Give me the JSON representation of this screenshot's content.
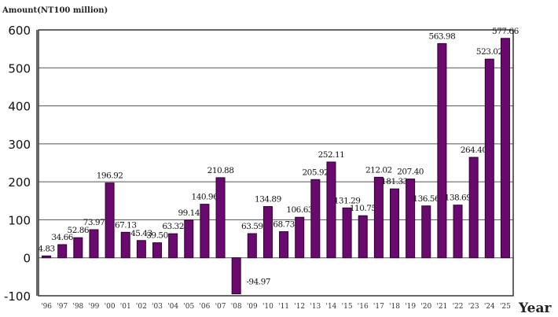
{
  "chart_data": {
    "type": "bar",
    "ylabel": "Amount(NT100 million)",
    "xlabel": "Year",
    "ylim": [
      -100,
      600
    ],
    "yticks": [
      -100,
      0,
      100,
      200,
      300,
      400,
      500,
      600
    ],
    "grid": true,
    "bar_color": "#6b0a6e",
    "categories": [
      "'96",
      "'97",
      "'98",
      "'99",
      "'00",
      "'01",
      "'02",
      "'03",
      "'04",
      "'05",
      "'06",
      "'07",
      "'08",
      "'09",
      "'10",
      "'11",
      "'12",
      "'13",
      "'14",
      "'15",
      "'16",
      "'17",
      "'18",
      "'19",
      "'20",
      "'21",
      "'22",
      "'23",
      "'24",
      "'25"
    ],
    "values": [
      4.83,
      34.66,
      52.86,
      73.97,
      196.92,
      67.13,
      45.43,
      39.5,
      63.32,
      99.14,
      140.96,
      210.88,
      -94.97,
      63.59,
      134.89,
      68.73,
      106.63,
      205.92,
      252.11,
      131.29,
      110.75,
      212.02,
      181.33,
      207.4,
      136.56,
      563.98,
      138.69,
      264.4,
      523.02,
      577.66
    ],
    "labels": [
      "4.83",
      "34.66",
      "52.86",
      "73.97",
      "196.92",
      "67.13",
      "45.43",
      "39.50",
      "63.32",
      "99.14",
      "140.96",
      "210.88",
      "-94.97",
      "63.59",
      "134.89",
      "68.73",
      "106.63",
      "205.92",
      "252.11",
      "131.29",
      "110.75",
      "212.02",
      "181.33",
      "207.40",
      "136.56",
      "563.98",
      "138.69",
      "264.40",
      "523.02",
      "577.66"
    ]
  }
}
